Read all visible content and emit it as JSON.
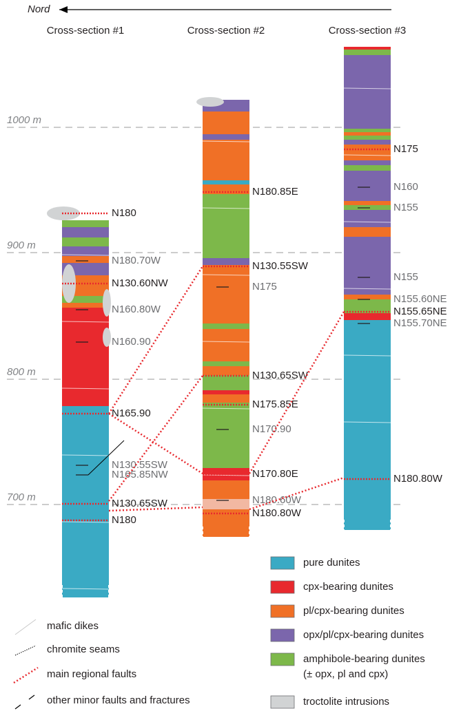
{
  "header": {
    "north": "Nord"
  },
  "elevations": [
    "1000 m",
    "900 m",
    "800 m",
    "700 m"
  ],
  "columns": [
    {
      "title": "Cross-section #1",
      "labels": [
        "N180",
        "N180.70W",
        "N130.60NW",
        "N160.80W",
        "N160.90",
        "N165.90",
        "N130.55SW",
        "N165.85NW",
        "N130.65SW",
        "N180"
      ]
    },
    {
      "title": "Cross-section #2",
      "labels": [
        "N180.85E",
        "N130.55SW",
        "N175",
        "N130.65SW",
        "N175.85E",
        "N170.90",
        "N170.80E",
        "N180.60W",
        "N180.80W"
      ]
    },
    {
      "title": "Cross-section #3",
      "labels": [
        "N175",
        "N160",
        "N155",
        "N155",
        "N155.60NE",
        "N155.65NE",
        "N155.70NE",
        "N180.80W"
      ]
    }
  ],
  "legend": {
    "units": [
      "pure dunites",
      "cpx-bearing dunites",
      "pl/cpx-bearing dunites",
      "opx/pl/cpx-bearing dunites",
      "amphibole-bearing dunites (± opx, pl and cpx)",
      "troctolite intrusions"
    ],
    "symbols": [
      "mafic dikes",
      "chromite seams",
      "main regional faults",
      "other minor faults and fractures"
    ]
  }
}
